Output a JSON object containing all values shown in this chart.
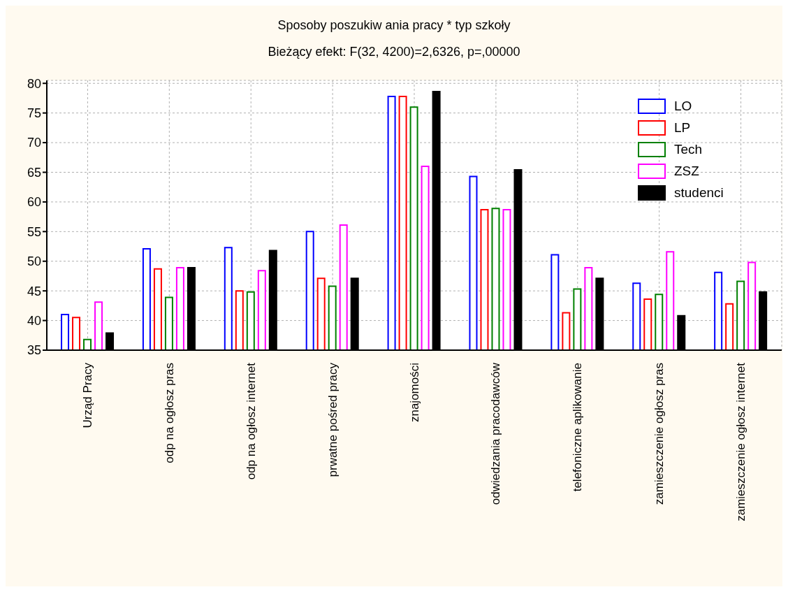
{
  "chart_data": {
    "type": "bar",
    "title": "Sposoby poszukiw ania pracy * typ szkoły",
    "subtitle": "Bieżący efekt: F(32, 4200)=2,6326, p=,00000",
    "categories": [
      "Urząd Pracy",
      "odp na ogłosz pras",
      "odp na ogłosz internet",
      "prwatne pośred pracy",
      "znajomości",
      "odwiedzania pracodawców",
      "telefoniczne aplikowanie",
      "zamieszczenie ogłosz pras",
      "zamieszczenie ogłosz internet"
    ],
    "series": [
      {
        "name": "LO",
        "color": "#0000ff",
        "values": [
          41,
          52.1,
          52.3,
          55,
          77.8,
          64.3,
          51.1,
          46.3,
          48.1
        ]
      },
      {
        "name": "LP",
        "color": "#ff0000",
        "values": [
          40.5,
          48.7,
          45,
          47.1,
          77.8,
          58.7,
          41.3,
          43.6,
          42.8
        ]
      },
      {
        "name": "Tech",
        "color": "#008000",
        "values": [
          36.8,
          43.9,
          44.8,
          45.8,
          76,
          58.9,
          45.3,
          44.4,
          46.6
        ]
      },
      {
        "name": "ZSZ",
        "color": "#ff00ff",
        "values": [
          43.1,
          48.9,
          48.4,
          56.1,
          66,
          58.7,
          48.9,
          51.6,
          49.8
        ]
      },
      {
        "name": "studenci",
        "color": "#000000",
        "values": [
          37.9,
          48.9,
          51.8,
          47.1,
          78.6,
          65.4,
          47.1,
          40.8,
          44.8
        ]
      }
    ],
    "ylim": [
      35,
      80.5
    ],
    "yticks": [
      35,
      40,
      45,
      50,
      55,
      60,
      65,
      70,
      75,
      80
    ],
    "grid": true,
    "legend": "top right"
  }
}
